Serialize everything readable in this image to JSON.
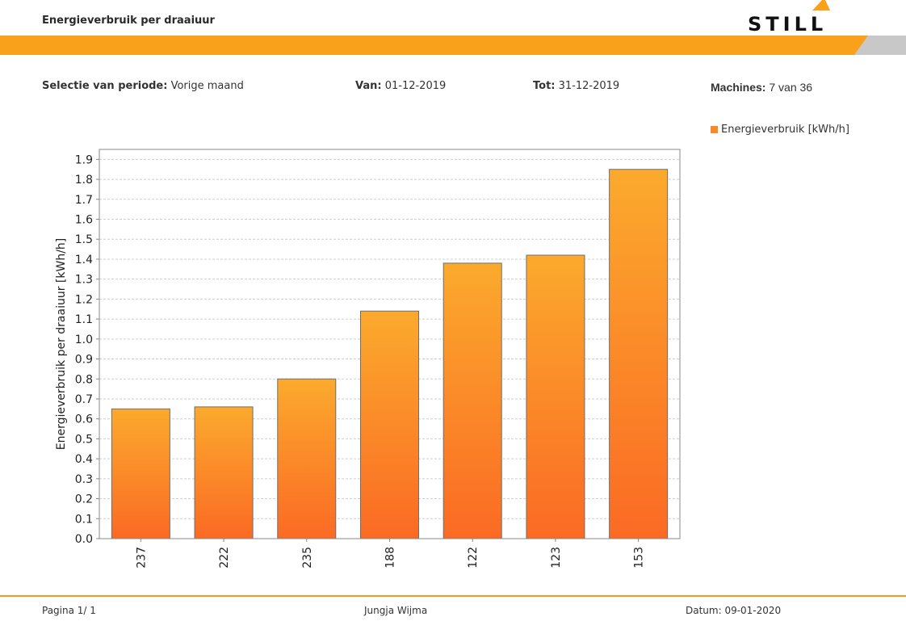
{
  "header": {
    "title": "Energieverbruik per draaiuur",
    "logo_text": "STILL"
  },
  "colors": {
    "band_orange": "#f9a11b",
    "band_gray": "#c8c8c8",
    "bar_top": "#fbaa2d",
    "bar_bottom": "#fb6a24",
    "legend_swatch": "#f58a2a",
    "footer_line": "#f59a1e"
  },
  "filters": {
    "period_label": "Selectie van periode:",
    "period_value": "Vorige maand",
    "from_label": "Van:",
    "from_value": "01-12-2019",
    "to_label": "Tot:",
    "to_value": "31-12-2019",
    "machines_label": "Machines:",
    "machines_value": "7 van 36"
  },
  "chart_data": {
    "type": "bar",
    "categories": [
      "237",
      "222",
      "235",
      "188",
      "122",
      "123",
      "153"
    ],
    "series": [
      {
        "name": "Energieverbruik [kWh/h]",
        "values": [
          0.65,
          0.66,
          0.8,
          1.14,
          1.38,
          1.42,
          1.85
        ]
      }
    ],
    "title": "",
    "xlabel": "",
    "ylabel": "Energieverbruik per draaiuur [kWh/h]",
    "ylim": [
      0,
      1.95
    ],
    "yticks": [
      "0.0",
      "0.1",
      "0.2",
      "0.3",
      "0.4",
      "0.5",
      "0.6",
      "0.7",
      "0.8",
      "0.9",
      "1.0",
      "1.1",
      "1.2",
      "1.3",
      "1.4",
      "1.5",
      "1.6",
      "1.7",
      "1.8",
      "1.9"
    ],
    "grid": true,
    "legend": "top-right"
  },
  "footer": {
    "page": "Pagina 1/ 1",
    "user": "Jungja  Wijma",
    "date": "Datum: 09-01-2020"
  }
}
